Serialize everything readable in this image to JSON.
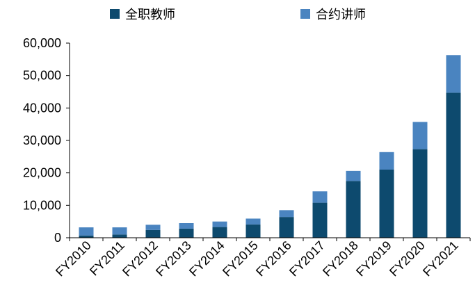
{
  "chart_data": {
    "type": "bar",
    "stacked": true,
    "categories": [
      "FY2010",
      "FY2011",
      "FY2012",
      "FY2013",
      "FY2014",
      "FY2015",
      "FY2016",
      "FY2017",
      "FY2018",
      "FY2019",
      "FY2020",
      "FY2021"
    ],
    "series": [
      {
        "name": "全职教师",
        "color": "#0d4a6e",
        "values": [
          700,
          1000,
          2400,
          2800,
          3300,
          4100,
          6400,
          10800,
          17500,
          21000,
          27300,
          44700
        ]
      },
      {
        "name": "合约讲师",
        "color": "#4a84c0",
        "values": [
          2500,
          2200,
          1600,
          1700,
          1700,
          1800,
          2100,
          3500,
          3100,
          5400,
          8400,
          11600
        ]
      }
    ],
    "yticks": [
      "0",
      "10,000",
      "20,000",
      "30,000",
      "40,000",
      "50,000",
      "60,000"
    ],
    "ylim": [
      0,
      60000
    ],
    "legend_position": "top",
    "grid": false,
    "title": "",
    "xlabel": "",
    "ylabel": ""
  }
}
